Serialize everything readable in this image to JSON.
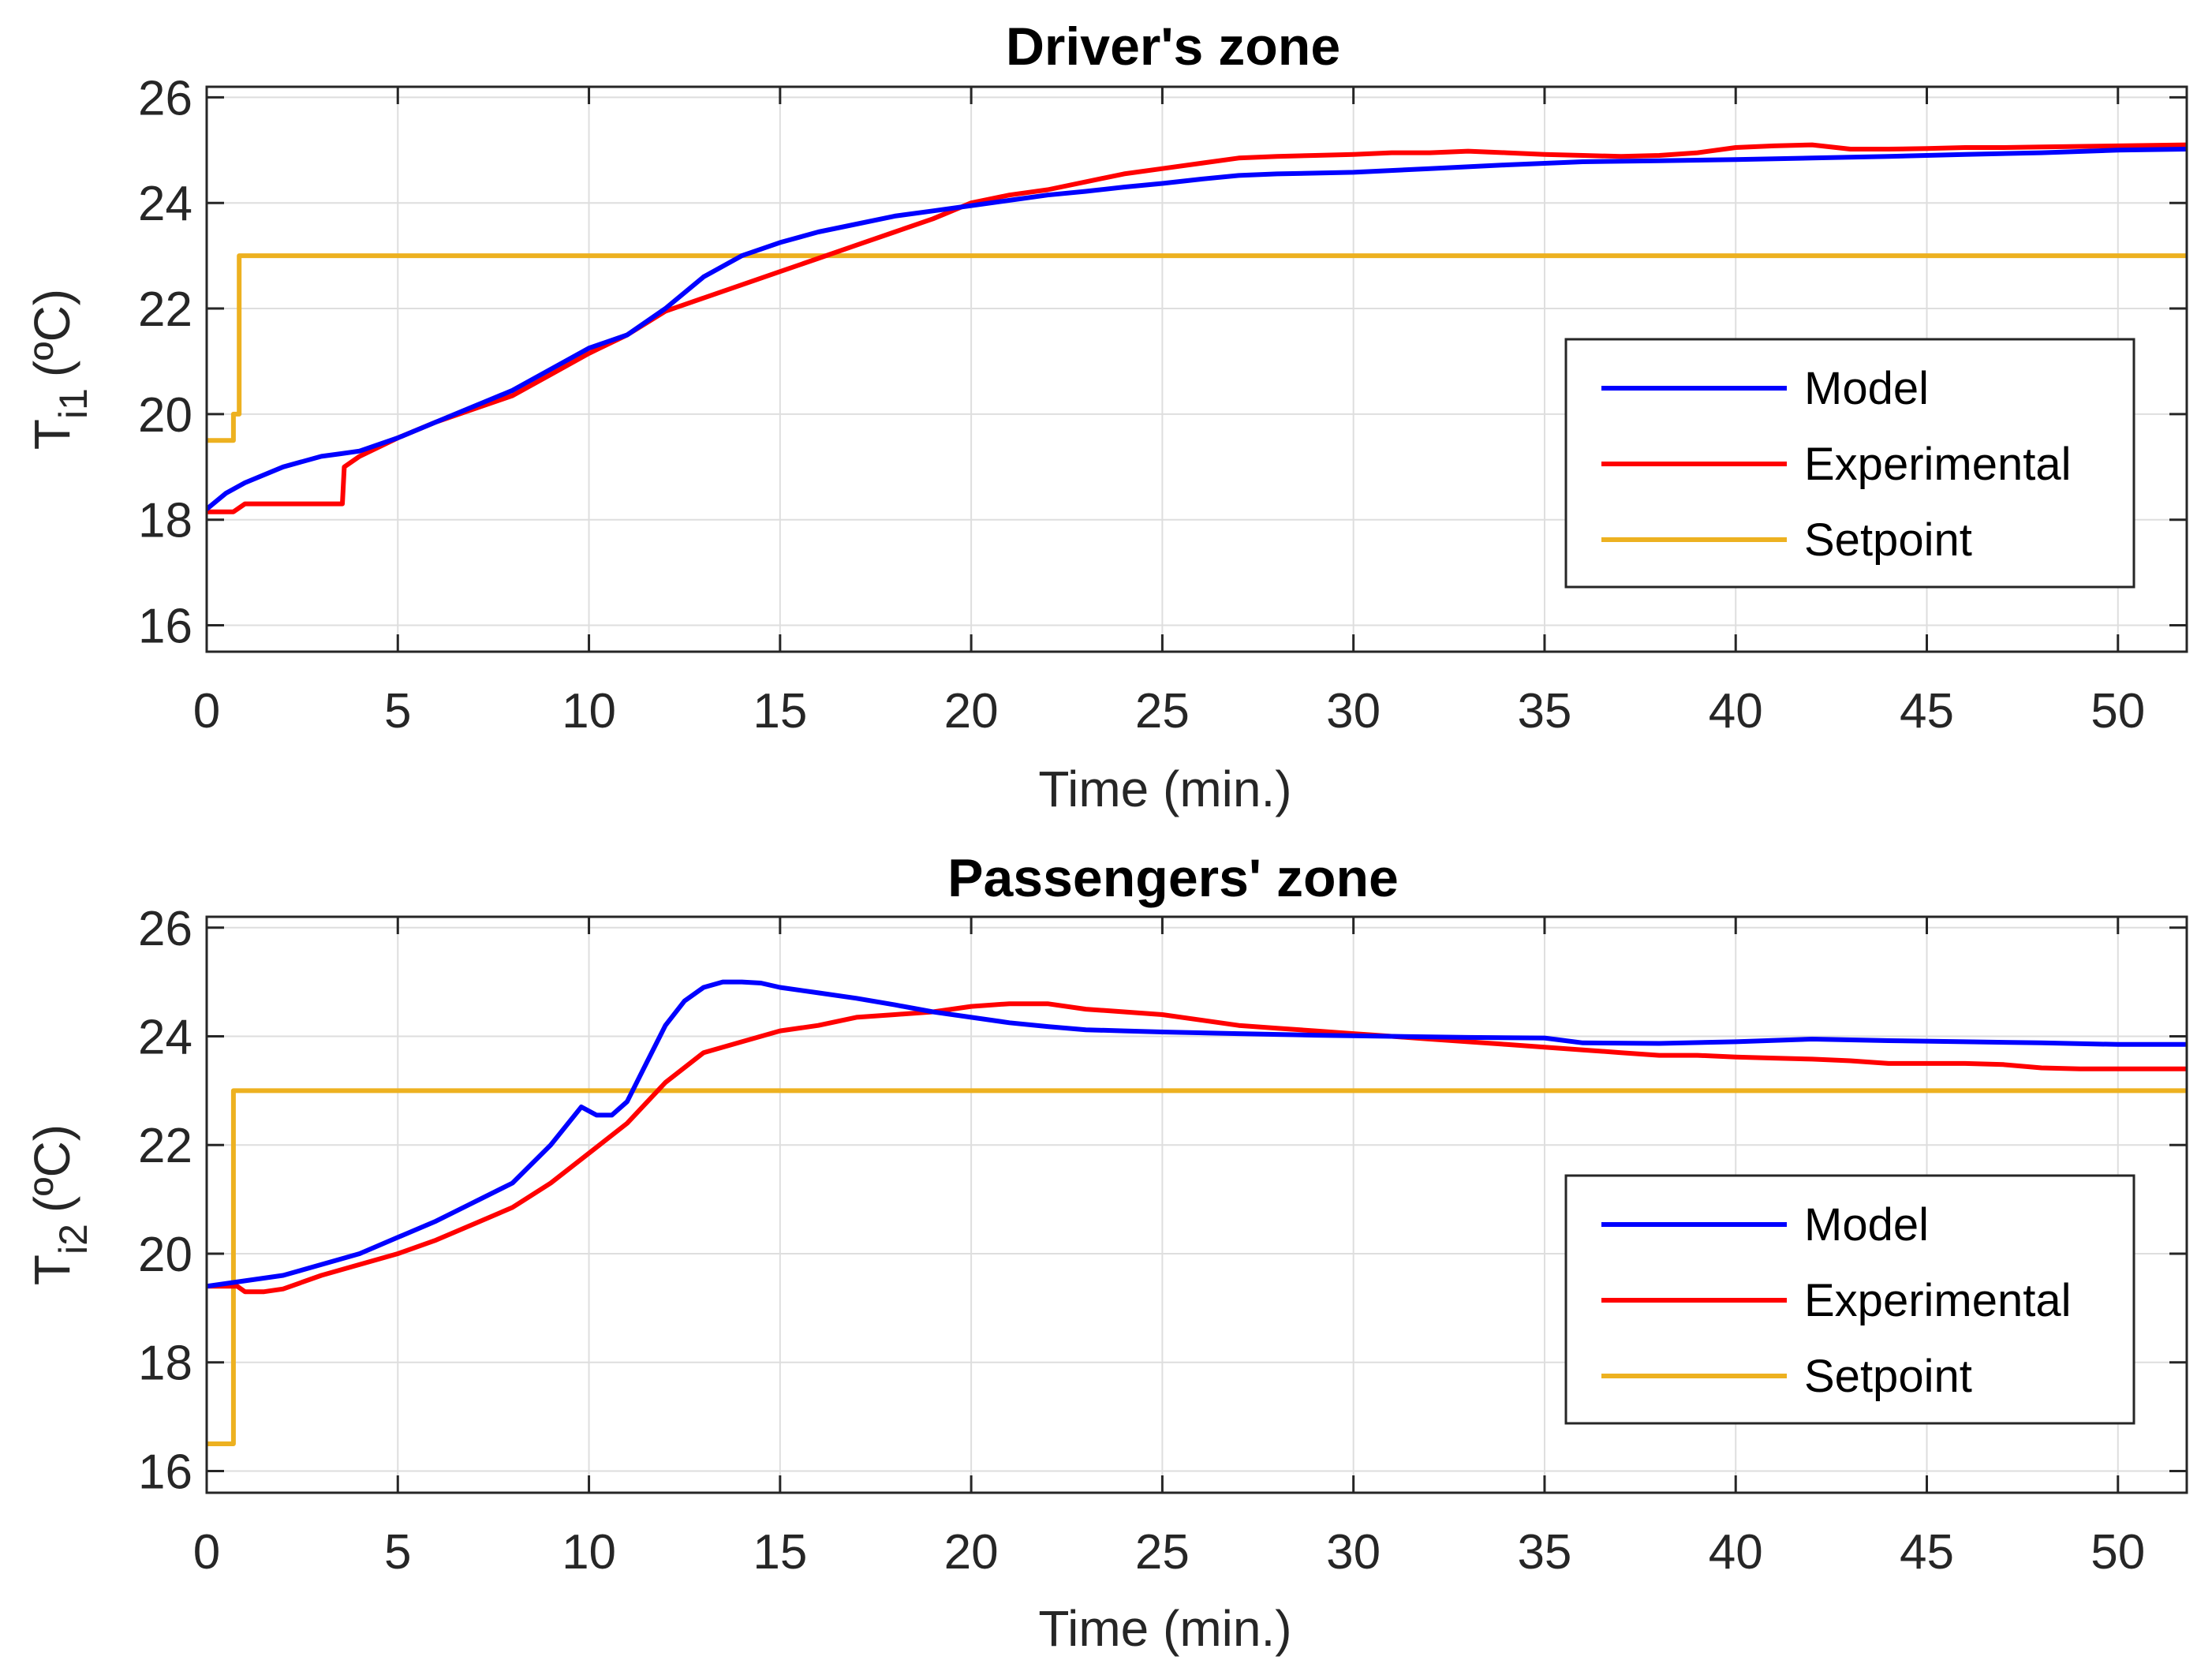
{
  "chart_data": [
    {
      "type": "line",
      "title": "Driver's zone",
      "xlabel": "Time (min.)",
      "ylabel_main": "T",
      "ylabel_sub": "i1",
      "ylabel_unit": "(ºC)",
      "xlim": [
        0,
        51.8
      ],
      "ylim": [
        15.5,
        26.2
      ],
      "xticks": [
        0,
        5,
        10,
        15,
        20,
        25,
        30,
        35,
        40,
        45,
        50
      ],
      "yticks": [
        16,
        18,
        20,
        22,
        24,
        26
      ],
      "legend_position": "right",
      "series": [
        {
          "name": "Model",
          "color": "#0000ff",
          "x": [
            0,
            0.5,
            1,
            2,
            3,
            3.5,
            4,
            5,
            6,
            7,
            8,
            9,
            10,
            11,
            12,
            13,
            14,
            15,
            16,
            17,
            18,
            19,
            20,
            21,
            22,
            23,
            24,
            25,
            26,
            27,
            28,
            30,
            32,
            34,
            36,
            38,
            40,
            42,
            44,
            46,
            48,
            50,
            51.8
          ],
          "y": [
            18.2,
            18.5,
            18.7,
            19.0,
            19.2,
            19.25,
            19.3,
            19.55,
            19.85,
            20.15,
            20.45,
            20.85,
            21.25,
            21.5,
            22.0,
            22.6,
            23.0,
            23.25,
            23.45,
            23.6,
            23.75,
            23.85,
            23.95,
            24.05,
            24.15,
            24.22,
            24.3,
            24.37,
            24.45,
            24.52,
            24.55,
            24.58,
            24.65,
            24.72,
            24.78,
            24.8,
            24.82,
            24.85,
            24.88,
            24.92,
            24.95,
            25.0,
            25.02
          ]
        },
        {
          "name": "Experimental",
          "color": "#ff0000",
          "x": [
            0,
            0.7,
            1.0,
            2.0,
            3.0,
            3.55,
            3.6,
            4.0,
            5,
            6,
            7,
            8,
            9,
            10,
            11,
            12,
            13,
            14,
            15,
            16,
            17,
            18,
            19,
            20,
            21,
            22,
            23,
            24,
            25,
            26,
            27,
            28,
            29,
            30,
            31,
            32,
            33,
            34,
            35,
            36,
            37,
            38,
            39,
            40,
            41,
            42,
            43,
            44,
            45,
            46,
            47,
            48,
            50,
            51.8
          ],
          "y": [
            18.15,
            18.15,
            18.3,
            18.3,
            18.3,
            18.3,
            19.0,
            19.2,
            19.55,
            19.85,
            20.1,
            20.35,
            20.75,
            21.15,
            21.5,
            21.95,
            22.2,
            22.45,
            22.7,
            22.95,
            23.2,
            23.45,
            23.7,
            24.0,
            24.15,
            24.25,
            24.4,
            24.55,
            24.65,
            24.75,
            24.85,
            24.88,
            24.9,
            24.92,
            24.95,
            24.95,
            24.98,
            24.95,
            24.92,
            24.9,
            24.88,
            24.9,
            24.95,
            25.05,
            25.08,
            25.1,
            25.02,
            25.02,
            25.03,
            25.05,
            25.05,
            25.06,
            25.08,
            25.1
          ]
        },
        {
          "name": "Setpoint",
          "color": "#edb120",
          "x": [
            0,
            0.7,
            0.7,
            0.85,
            0.85,
            51.8
          ],
          "y": [
            19.5,
            19.5,
            20.0,
            20.0,
            23.0,
            23.0
          ]
        }
      ]
    },
    {
      "type": "line",
      "title": "Passengers' zone",
      "xlabel": "Time (min.)",
      "ylabel_main": "T",
      "ylabel_sub": "i2",
      "ylabel_unit": "(ºC)",
      "xlim": [
        0,
        51.8
      ],
      "ylim": [
        15.6,
        26.2
      ],
      "xticks": [
        0,
        5,
        10,
        15,
        20,
        25,
        30,
        35,
        40,
        45,
        50
      ],
      "yticks": [
        16,
        18,
        20,
        22,
        24,
        26
      ],
      "legend_position": "right",
      "series": [
        {
          "name": "Model",
          "color": "#0000ff",
          "x": [
            0,
            1,
            2,
            3,
            4,
            5,
            6,
            7,
            8,
            9,
            9.8,
            10.2,
            10.6,
            11,
            11.5,
            12,
            12.5,
            13,
            13.5,
            14,
            14.5,
            15,
            16,
            17,
            18,
            19,
            20,
            21,
            22,
            23,
            24,
            25,
            27,
            29,
            31,
            33,
            35,
            36,
            38,
            40,
            42,
            44,
            46,
            48,
            50,
            51.8
          ],
          "y": [
            19.4,
            19.5,
            19.6,
            19.8,
            20.0,
            20.3,
            20.6,
            20.95,
            21.3,
            22.0,
            22.7,
            22.55,
            22.55,
            22.8,
            23.5,
            24.2,
            24.65,
            24.9,
            25.0,
            25.0,
            24.98,
            24.9,
            24.8,
            24.7,
            24.58,
            24.45,
            24.35,
            24.25,
            24.18,
            24.12,
            24.1,
            24.08,
            24.05,
            24.02,
            24.0,
            23.98,
            23.97,
            23.88,
            23.87,
            23.9,
            23.95,
            23.92,
            23.9,
            23.88,
            23.85,
            23.85
          ]
        },
        {
          "name": "Experimental",
          "color": "#ff0000",
          "x": [
            0,
            0.8,
            1.0,
            1.5,
            2,
            3,
            4,
            5,
            6,
            7,
            8,
            9,
            10,
            11,
            12,
            13,
            14,
            15,
            16,
            17,
            18,
            19,
            20,
            21,
            22,
            23,
            24,
            25,
            26,
            27,
            28,
            29,
            30,
            31,
            32,
            33,
            34,
            35,
            36,
            37,
            38,
            39,
            40,
            41,
            42,
            43,
            44,
            45,
            46,
            47,
            48,
            49,
            50,
            51.8
          ],
          "y": [
            19.4,
            19.4,
            19.3,
            19.3,
            19.35,
            19.6,
            19.8,
            20.0,
            20.25,
            20.55,
            20.85,
            21.3,
            21.85,
            22.4,
            23.15,
            23.7,
            23.9,
            24.1,
            24.2,
            24.35,
            24.4,
            24.45,
            24.55,
            24.6,
            24.6,
            24.5,
            24.45,
            24.4,
            24.3,
            24.2,
            24.15,
            24.1,
            24.05,
            24.0,
            23.95,
            23.9,
            23.85,
            23.8,
            23.75,
            23.7,
            23.65,
            23.65,
            23.62,
            23.6,
            23.58,
            23.55,
            23.5,
            23.5,
            23.5,
            23.48,
            23.42,
            23.4,
            23.4,
            23.4
          ]
        },
        {
          "name": "Setpoint",
          "color": "#edb120",
          "x": [
            0,
            0.7,
            0.7,
            51.8
          ],
          "y": [
            16.5,
            16.5,
            23.0,
            23.0
          ]
        }
      ]
    }
  ]
}
